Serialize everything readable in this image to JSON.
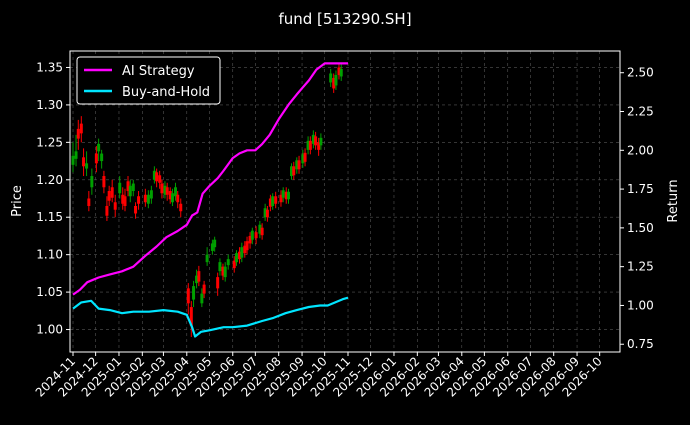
{
  "chart_data": {
    "type": "line",
    "title": "fund [513290.SH]",
    "ylabel_left": "Price",
    "ylabel_right": "Return",
    "x_ticks": [
      "2024-11",
      "2024-12",
      "2025-01",
      "2025-02",
      "2025-03",
      "2025-04",
      "2025-05",
      "2025-06",
      "2025-07",
      "2025-08",
      "2025-09",
      "2025-10",
      "2025-11",
      "2025-12",
      "2026-01",
      "2026-02",
      "2026-03",
      "2026-04",
      "2026-05",
      "2026-06",
      "2026-07",
      "2026-08",
      "2026-09",
      "2026-10"
    ],
    "xlim": [
      "2024-10-28",
      "2026-10-28"
    ],
    "ylim_left": [
      0.97,
      1.372
    ],
    "ylim_right": [
      0.7,
      2.64
    ],
    "y_ticks_left": [
      "1.00",
      "1.05",
      "1.10",
      "1.15",
      "1.20",
      "1.25",
      "1.30",
      "1.35"
    ],
    "y_ticks_right": [
      "0.75",
      "1.00",
      "1.25",
      "1.50",
      "1.75",
      "2.00",
      "2.25",
      "2.50"
    ],
    "grid": true,
    "legend_position": "top-left",
    "colors": {
      "background": "#000000",
      "ai_strategy": "#ff00ff",
      "buy_and_hold": "#00e5ff",
      "candle_up": "#00a000",
      "candle_down": "#ff0000",
      "grid": "#555555",
      "text": "#ffffff"
    },
    "series": [
      {
        "name": "AI Strategy",
        "axis": "right",
        "points": [
          [
            "2024-11-01",
            1.07
          ],
          [
            "2024-11-10",
            1.1
          ],
          [
            "2024-11-20",
            1.15
          ],
          [
            "2024-12-05",
            1.18
          ],
          [
            "2024-12-20",
            1.2
          ],
          [
            "2025-01-05",
            1.22
          ],
          [
            "2025-01-20",
            1.25
          ],
          [
            "2025-02-05",
            1.32
          ],
          [
            "2025-02-20",
            1.38
          ],
          [
            "2025-03-05",
            1.44
          ],
          [
            "2025-03-20",
            1.48
          ],
          [
            "2025-04-01",
            1.52
          ],
          [
            "2025-04-08",
            1.58
          ],
          [
            "2025-04-15",
            1.6
          ],
          [
            "2025-04-22",
            1.72
          ],
          [
            "2025-05-01",
            1.77
          ],
          [
            "2025-05-12",
            1.82
          ],
          [
            "2025-05-20",
            1.87
          ],
          [
            "2025-06-01",
            1.95
          ],
          [
            "2025-06-10",
            1.98
          ],
          [
            "2025-06-20",
            2.0
          ],
          [
            "2025-07-01",
            2.0
          ],
          [
            "2025-07-10",
            2.04
          ],
          [
            "2025-07-20",
            2.1
          ],
          [
            "2025-08-01",
            2.2
          ],
          [
            "2025-08-15",
            2.3
          ],
          [
            "2025-08-25",
            2.36
          ],
          [
            "2025-09-01",
            2.4
          ],
          [
            "2025-09-10",
            2.45
          ],
          [
            "2025-09-20",
            2.52
          ],
          [
            "2025-10-01",
            2.56
          ],
          [
            "2025-10-20",
            2.56
          ],
          [
            "2025-11-01",
            2.56
          ]
        ]
      },
      {
        "name": "Buy-and-Hold",
        "axis": "right",
        "points": [
          [
            "2024-11-01",
            0.98
          ],
          [
            "2024-11-12",
            1.02
          ],
          [
            "2024-11-25",
            1.03
          ],
          [
            "2024-12-05",
            0.98
          ],
          [
            "2024-12-20",
            0.97
          ],
          [
            "2025-01-05",
            0.95
          ],
          [
            "2025-01-20",
            0.96
          ],
          [
            "2025-02-10",
            0.96
          ],
          [
            "2025-03-01",
            0.97
          ],
          [
            "2025-03-20",
            0.96
          ],
          [
            "2025-04-01",
            0.94
          ],
          [
            "2025-04-08",
            0.86
          ],
          [
            "2025-04-12",
            0.8
          ],
          [
            "2025-04-20",
            0.83
          ],
          [
            "2025-05-01",
            0.84
          ],
          [
            "2025-05-20",
            0.86
          ],
          [
            "2025-06-01",
            0.86
          ],
          [
            "2025-06-20",
            0.87
          ],
          [
            "2025-07-10",
            0.9
          ],
          [
            "2025-07-25",
            0.92
          ],
          [
            "2025-08-10",
            0.95
          ],
          [
            "2025-08-25",
            0.97
          ],
          [
            "2025-09-10",
            0.99
          ],
          [
            "2025-09-25",
            1.0
          ],
          [
            "2025-10-05",
            1.0
          ],
          [
            "2025-10-15",
            1.02
          ],
          [
            "2025-10-25",
            1.04
          ],
          [
            "2025-11-01",
            1.05
          ]
        ]
      }
    ],
    "candles": [
      {
        "date": "2024-11-01",
        "open": 1.22,
        "close": 1.232,
        "high": 1.25,
        "low": 1.21
      },
      {
        "date": "2024-11-05",
        "open": 1.228,
        "close": 1.238,
        "high": 1.26,
        "low": 1.218
      },
      {
        "date": "2024-11-08",
        "open": 1.268,
        "close": 1.255,
        "high": 1.28,
        "low": 1.24
      },
      {
        "date": "2024-11-12",
        "open": 1.275,
        "close": 1.262,
        "high": 1.285,
        "low": 1.25
      },
      {
        "date": "2024-11-15",
        "open": 1.23,
        "close": 1.218,
        "high": 1.242,
        "low": 1.205
      },
      {
        "date": "2024-11-19",
        "open": 1.215,
        "close": 1.222,
        "high": 1.238,
        "low": 1.205
      },
      {
        "date": "2024-11-22",
        "open": 1.175,
        "close": 1.165,
        "high": 1.185,
        "low": 1.158
      },
      {
        "date": "2024-11-26",
        "open": 1.19,
        "close": 1.205,
        "high": 1.215,
        "low": 1.18
      },
      {
        "date": "2024-12-02",
        "open": 1.235,
        "close": 1.222,
        "high": 1.245,
        "low": 1.21
      },
      {
        "date": "2024-12-05",
        "open": 1.238,
        "close": 1.248,
        "high": 1.255,
        "low": 1.225
      },
      {
        "date": "2024-12-09",
        "open": 1.225,
        "close": 1.235,
        "high": 1.24,
        "low": 1.215
      },
      {
        "date": "2024-12-12",
        "open": 1.205,
        "close": 1.19,
        "high": 1.212,
        "low": 1.182
      },
      {
        "date": "2024-12-16",
        "open": 1.165,
        "close": 1.152,
        "high": 1.178,
        "low": 1.145
      },
      {
        "date": "2024-12-19",
        "open": 1.185,
        "close": 1.172,
        "high": 1.192,
        "low": 1.165
      },
      {
        "date": "2024-12-23",
        "open": 1.19,
        "close": 1.176,
        "high": 1.2,
        "low": 1.17
      },
      {
        "date": "2024-12-27",
        "open": 1.17,
        "close": 1.16,
        "high": 1.18,
        "low": 1.15
      },
      {
        "date": "2025-01-02",
        "open": 1.182,
        "close": 1.196,
        "high": 1.205,
        "low": 1.175
      },
      {
        "date": "2025-01-06",
        "open": 1.18,
        "close": 1.168,
        "high": 1.19,
        "low": 1.16
      },
      {
        "date": "2025-01-09",
        "open": 1.178,
        "close": 1.165,
        "high": 1.188,
        "low": 1.158
      },
      {
        "date": "2025-01-13",
        "open": 1.198,
        "close": 1.185,
        "high": 1.205,
        "low": 1.178
      },
      {
        "date": "2025-01-16",
        "open": 1.178,
        "close": 1.192,
        "high": 1.2,
        "low": 1.17
      },
      {
        "date": "2025-01-20",
        "open": 1.185,
        "close": 1.195,
        "high": 1.2,
        "low": 1.178
      },
      {
        "date": "2025-01-23",
        "open": 1.165,
        "close": 1.155,
        "high": 1.17,
        "low": 1.148
      },
      {
        "date": "2025-01-27",
        "open": 1.178,
        "close": 1.168,
        "high": 1.185,
        "low": 1.16
      },
      {
        "date": "2025-02-05",
        "open": 1.18,
        "close": 1.17,
        "high": 1.188,
        "low": 1.164
      },
      {
        "date": "2025-02-09",
        "open": 1.168,
        "close": 1.18,
        "high": 1.186,
        "low": 1.162
      },
      {
        "date": "2025-02-13",
        "open": 1.175,
        "close": 1.186,
        "high": 1.192,
        "low": 1.168
      },
      {
        "date": "2025-02-17",
        "open": 1.2,
        "close": 1.212,
        "high": 1.218,
        "low": 1.195
      },
      {
        "date": "2025-02-20",
        "open": 1.21,
        "close": 1.198,
        "high": 1.215,
        "low": 1.19
      },
      {
        "date": "2025-02-24",
        "open": 1.206,
        "close": 1.196,
        "high": 1.212,
        "low": 1.188
      },
      {
        "date": "2025-02-27",
        "open": 1.195,
        "close": 1.182,
        "high": 1.2,
        "low": 1.175
      },
      {
        "date": "2025-03-03",
        "open": 1.18,
        "close": 1.192,
        "high": 1.198,
        "low": 1.175
      },
      {
        "date": "2025-03-06",
        "open": 1.19,
        "close": 1.18,
        "high": 1.196,
        "low": 1.172
      },
      {
        "date": "2025-03-10",
        "open": 1.185,
        "close": 1.174,
        "high": 1.19,
        "low": 1.168
      },
      {
        "date": "2025-03-13",
        "open": 1.17,
        "close": 1.182,
        "high": 1.188,
        "low": 1.165
      },
      {
        "date": "2025-03-17",
        "open": 1.178,
        "close": 1.19,
        "high": 1.196,
        "low": 1.172
      },
      {
        "date": "2025-03-20",
        "open": 1.18,
        "close": 1.17,
        "high": 1.185,
        "low": 1.162
      },
      {
        "date": "2025-03-24",
        "open": 1.168,
        "close": 1.158,
        "high": 1.175,
        "low": 1.15
      },
      {
        "date": "2025-04-03",
        "open": 1.055,
        "close": 1.035,
        "high": 1.062,
        "low": 1.02
      },
      {
        "date": "2025-04-07",
        "open": 1.03,
        "close": 1.005,
        "high": 1.038,
        "low": 0.99
      },
      {
        "date": "2025-04-10",
        "open": 1.04,
        "close": 1.058,
        "high": 1.065,
        "low": 1.03
      },
      {
        "date": "2025-04-14",
        "open": 1.062,
        "close": 1.072,
        "high": 1.08,
        "low": 1.055
      },
      {
        "date": "2025-04-17",
        "open": 1.078,
        "close": 1.064,
        "high": 1.085,
        "low": 1.058
      },
      {
        "date": "2025-04-21",
        "open": 1.035,
        "close": 1.048,
        "high": 1.055,
        "low": 1.03
      },
      {
        "date": "2025-04-24",
        "open": 1.06,
        "close": 1.048,
        "high": 1.065,
        "low": 1.042
      },
      {
        "date": "2025-04-28",
        "open": 1.09,
        "close": 1.1,
        "high": 1.11,
        "low": 1.085
      },
      {
        "date": "2025-05-05",
        "open": 1.105,
        "close": 1.115,
        "high": 1.12,
        "low": 1.1
      },
      {
        "date": "2025-05-08",
        "open": 1.11,
        "close": 1.12,
        "high": 1.124,
        "low": 1.104
      },
      {
        "date": "2025-05-12",
        "open": 1.07,
        "close": 1.055,
        "high": 1.076,
        "low": 1.045
      },
      {
        "date": "2025-05-15",
        "open": 1.078,
        "close": 1.09,
        "high": 1.095,
        "low": 1.072
      },
      {
        "date": "2025-05-19",
        "open": 1.084,
        "close": 1.072,
        "high": 1.088,
        "low": 1.066
      },
      {
        "date": "2025-05-22",
        "open": 1.07,
        "close": 1.084,
        "high": 1.09,
        "low": 1.064
      },
      {
        "date": "2025-05-26",
        "open": 1.086,
        "close": 1.094,
        "high": 1.1,
        "low": 1.08
      },
      {
        "date": "2025-06-03",
        "open": 1.092,
        "close": 1.082,
        "high": 1.098,
        "low": 1.076
      },
      {
        "date": "2025-06-06",
        "open": 1.09,
        "close": 1.102,
        "high": 1.106,
        "low": 1.085
      },
      {
        "date": "2025-06-10",
        "open": 1.104,
        "close": 1.094,
        "high": 1.11,
        "low": 1.088
      },
      {
        "date": "2025-06-13",
        "open": 1.096,
        "close": 1.11,
        "high": 1.116,
        "low": 1.09
      },
      {
        "date": "2025-06-17",
        "open": 1.112,
        "close": 1.102,
        "high": 1.118,
        "low": 1.096
      },
      {
        "date": "2025-06-20",
        "open": 1.118,
        "close": 1.106,
        "high": 1.124,
        "low": 1.1
      },
      {
        "date": "2025-06-24",
        "open": 1.125,
        "close": 1.115,
        "high": 1.13,
        "low": 1.108
      },
      {
        "date": "2025-06-27",
        "open": 1.12,
        "close": 1.132,
        "high": 1.136,
        "low": 1.114
      },
      {
        "date": "2025-07-02",
        "open": 1.13,
        "close": 1.122,
        "high": 1.138,
        "low": 1.114
      },
      {
        "date": "2025-07-07",
        "open": 1.128,
        "close": 1.14,
        "high": 1.145,
        "low": 1.122
      },
      {
        "date": "2025-07-10",
        "open": 1.136,
        "close": 1.126,
        "high": 1.142,
        "low": 1.12
      },
      {
        "date": "2025-07-14",
        "open": 1.15,
        "close": 1.162,
        "high": 1.168,
        "low": 1.145
      },
      {
        "date": "2025-07-17",
        "open": 1.16,
        "close": 1.15,
        "high": 1.165,
        "low": 1.144
      },
      {
        "date": "2025-07-21",
        "open": 1.175,
        "close": 1.164,
        "high": 1.18,
        "low": 1.158
      },
      {
        "date": "2025-07-24",
        "open": 1.165,
        "close": 1.178,
        "high": 1.182,
        "low": 1.16
      },
      {
        "date": "2025-07-28",
        "open": 1.178,
        "close": 1.168,
        "high": 1.184,
        "low": 1.162
      },
      {
        "date": "2025-08-04",
        "open": 1.18,
        "close": 1.17,
        "high": 1.186,
        "low": 1.164
      },
      {
        "date": "2025-08-07",
        "open": 1.176,
        "close": 1.186,
        "high": 1.19,
        "low": 1.17
      },
      {
        "date": "2025-08-11",
        "open": 1.184,
        "close": 1.174,
        "high": 1.19,
        "low": 1.168
      },
      {
        "date": "2025-08-14",
        "open": 1.174,
        "close": 1.184,
        "high": 1.188,
        "low": 1.168
      },
      {
        "date": "2025-08-18",
        "open": 1.205,
        "close": 1.218,
        "high": 1.222,
        "low": 1.2
      },
      {
        "date": "2025-08-21",
        "open": 1.218,
        "close": 1.206,
        "high": 1.224,
        "low": 1.2
      },
      {
        "date": "2025-08-25",
        "open": 1.214,
        "close": 1.226,
        "high": 1.23,
        "low": 1.208
      },
      {
        "date": "2025-08-28",
        "open": 1.226,
        "close": 1.214,
        "high": 1.232,
        "low": 1.208
      },
      {
        "date": "2025-09-02",
        "open": 1.222,
        "close": 1.234,
        "high": 1.24,
        "low": 1.216
      },
      {
        "date": "2025-09-05",
        "open": 1.236,
        "close": 1.224,
        "high": 1.242,
        "low": 1.218
      },
      {
        "date": "2025-09-09",
        "open": 1.24,
        "close": 1.252,
        "high": 1.258,
        "low": 1.234
      },
      {
        "date": "2025-09-12",
        "open": 1.252,
        "close": 1.24,
        "high": 1.258,
        "low": 1.234
      },
      {
        "date": "2025-09-16",
        "open": 1.248,
        "close": 1.26,
        "high": 1.266,
        "low": 1.242
      },
      {
        "date": "2025-09-19",
        "open": 1.258,
        "close": 1.246,
        "high": 1.264,
        "low": 1.24
      },
      {
        "date": "2025-09-23",
        "open": 1.25,
        "close": 1.24,
        "high": 1.256,
        "low": 1.232
      },
      {
        "date": "2025-09-26",
        "open": 1.246,
        "close": 1.256,
        "high": 1.262,
        "low": 1.24
      },
      {
        "date": "2025-10-09",
        "open": 1.33,
        "close": 1.342,
        "high": 1.348,
        "low": 1.324
      },
      {
        "date": "2025-10-13",
        "open": 1.336,
        "close": 1.322,
        "high": 1.342,
        "low": 1.316
      },
      {
        "date": "2025-10-16",
        "open": 1.326,
        "close": 1.34,
        "high": 1.346,
        "low": 1.32
      },
      {
        "date": "2025-10-20",
        "open": 1.35,
        "close": 1.34,
        "high": 1.356,
        "low": 1.334
      },
      {
        "date": "2025-10-23",
        "open": 1.338,
        "close": 1.348,
        "high": 1.354,
        "low": 1.332
      }
    ]
  },
  "legend": {
    "items": [
      {
        "label": "AI Strategy",
        "color": "#ff00ff"
      },
      {
        "label": "Buy-and-Hold",
        "color": "#00e5ff"
      }
    ]
  }
}
